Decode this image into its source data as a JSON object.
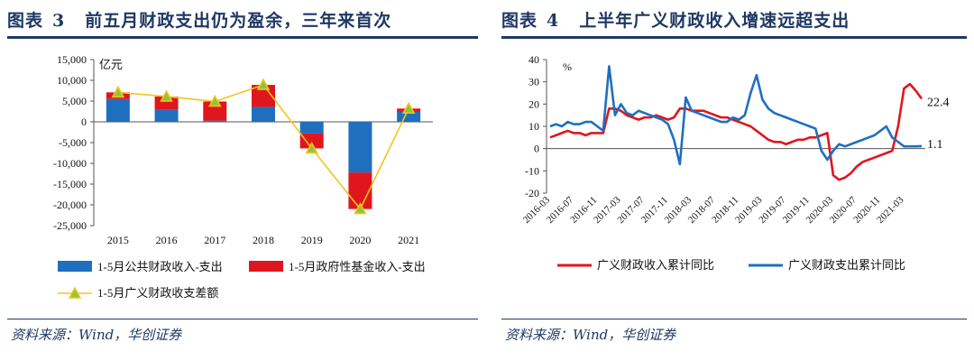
{
  "left": {
    "title_prefix": "图表",
    "title_number": "3",
    "title_text": "前五月财政支出仍为盈余，三年来首次",
    "source": "资料来源：Wind，华创证券"
  },
  "right": {
    "title_prefix": "图表",
    "title_number": "4",
    "title_text": "上半年广义财政收入增速远超支出",
    "source": "资料来源：Wind，华创证券"
  },
  "colors": {
    "title": "#1f3864",
    "blue": "#1f6fbf",
    "red": "#e0161e",
    "yellow": "#f5c518"
  },
  "chart_data": [
    {
      "type": "bar",
      "title": "前五月财政支出仍为盈余，三年来首次",
      "unit_label": "亿元",
      "stacked": true,
      "categories": [
        "2015",
        "2016",
        "2017",
        "2018",
        "2019",
        "2020",
        "2021"
      ],
      "series": [
        {
          "name": "1-5月公共财政收入-支出",
          "kind": "bar",
          "color": "#1f6fbf",
          "values": [
            5500,
            2900,
            300,
            3600,
            -2800,
            -12200,
            2500
          ]
        },
        {
          "name": "1-5月政府性基金收入-支出",
          "kind": "bar",
          "color": "#e0161e",
          "values": [
            1600,
            3200,
            4600,
            5300,
            -3600,
            -8800,
            700
          ]
        },
        {
          "name": "1-5月广义财政收支差额",
          "kind": "line",
          "color": "#f5c518",
          "values": [
            7100,
            6100,
            4900,
            8900,
            -6400,
            -21000,
            3200
          ]
        }
      ],
      "ylim": [
        -25000,
        15000
      ],
      "yticks": [
        "15,000",
        "10,000",
        "5,000",
        "0",
        "-5,000",
        "-10,000",
        "-15,000",
        "-20,000",
        "-25,000"
      ],
      "ytick_values": [
        15000,
        10000,
        5000,
        0,
        -5000,
        -10000,
        -15000,
        -20000,
        -25000
      ]
    },
    {
      "type": "line",
      "title": "上半年广义财政收入增速远超支出",
      "unit_label": "%",
      "ylim": [
        -20,
        40
      ],
      "yticks": [
        "40",
        "30",
        "20",
        "10",
        "0",
        "-10",
        "-20"
      ],
      "ytick_values": [
        40,
        30,
        20,
        10,
        0,
        -10,
        -20
      ],
      "x": [
        "2016-03",
        "2016-04",
        "2016-05",
        "2016-06",
        "2016-07",
        "2016-08",
        "2016-09",
        "2016-10",
        "2016-11",
        "2016-12",
        "2017-01",
        "2017-02",
        "2017-03",
        "2017-04",
        "2017-05",
        "2017-06",
        "2017-07",
        "2017-08",
        "2017-09",
        "2017-10",
        "2017-11",
        "2017-12",
        "2018-01",
        "2018-02",
        "2018-03",
        "2018-04",
        "2018-05",
        "2018-06",
        "2018-07",
        "2018-08",
        "2018-09",
        "2018-10",
        "2018-11",
        "2018-12",
        "2019-01",
        "2019-02",
        "2019-03",
        "2019-04",
        "2019-05",
        "2019-06",
        "2019-07",
        "2019-08",
        "2019-09",
        "2019-10",
        "2019-11",
        "2019-12",
        "2020-01",
        "2020-02",
        "2020-03",
        "2020-04",
        "2020-05",
        "2020-06",
        "2020-07",
        "2020-08",
        "2020-09",
        "2020-10",
        "2020-11",
        "2020-12",
        "2021-01",
        "2021-02",
        "2021-03",
        "2021-04",
        "2021-05",
        "2021-06"
      ],
      "xtick_labels": [
        "2016-03",
        "2016-07",
        "2016-11",
        "2017-03",
        "2017-07",
        "2017-11",
        "2018-03",
        "2018-07",
        "2018-11",
        "2019-03",
        "2019-07",
        "2019-11",
        "2020-03",
        "2020-07",
        "2020-11",
        "2021-03"
      ],
      "series": [
        {
          "name": "广义财政收入累计同比",
          "color": "#e0161e",
          "values": [
            5,
            6,
            7,
            8,
            7,
            7,
            6,
            7,
            7,
            7,
            18,
            18,
            17,
            15,
            14,
            13,
            14,
            14,
            15,
            14,
            13,
            14,
            18,
            18,
            17,
            17,
            17,
            16,
            15,
            14,
            14,
            13,
            12,
            11,
            10,
            8,
            6,
            4,
            3,
            3,
            2,
            3,
            4,
            4,
            5,
            5,
            6,
            7,
            -12,
            -14,
            -13,
            -11,
            -8,
            -6,
            -5,
            -4,
            -3,
            -2,
            -1,
            10,
            27,
            29,
            26,
            22.4
          ],
          "end_label": "22.4"
        },
        {
          "name": "广义财政支出累计同比",
          "color": "#1f6fbf",
          "values": [
            10,
            11,
            10,
            12,
            11,
            11,
            12,
            12,
            10,
            8,
            37,
            15,
            20,
            16,
            15,
            17,
            16,
            15,
            14,
            13,
            11,
            4,
            -7,
            23,
            17,
            16,
            15,
            14,
            13,
            12,
            12,
            14,
            13,
            15,
            25,
            33,
            22,
            18,
            16,
            15,
            14,
            13,
            12,
            11,
            10,
            9,
            -1,
            -5,
            -1,
            2,
            1,
            2,
            3,
            4,
            5,
            6,
            8,
            10,
            5,
            3,
            1,
            1,
            1,
            1.1
          ],
          "end_label": "1.1"
        }
      ]
    }
  ]
}
